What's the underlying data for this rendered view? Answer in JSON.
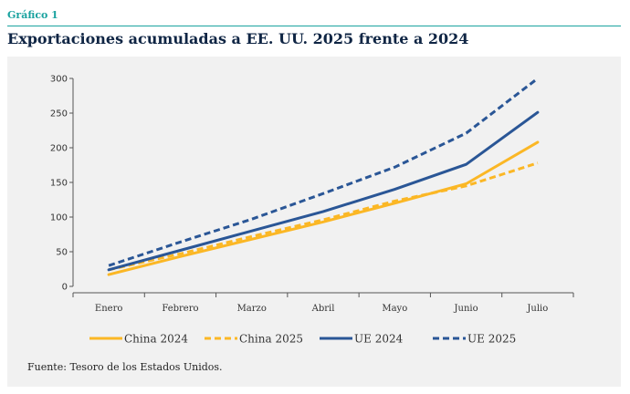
{
  "header": {
    "figure_label": "Gráfico 1",
    "title": "Exportaciones acumuladas a EE. UU. 2025 frente a 2024"
  },
  "source": "Fuente: Tesoro de los Estados Unidos.",
  "chart_data": {
    "type": "line",
    "categories": [
      "Enero",
      "Febrero",
      "Marzo",
      "Abril",
      "Mayo",
      "Junio",
      "Julio"
    ],
    "ylim": [
      0,
      300
    ],
    "yticks": [
      0,
      50,
      100,
      150,
      200,
      250,
      300
    ],
    "grid": false,
    "legend_position": "bottom",
    "series": [
      {
        "name": "China 2024",
        "color": "#fbb725",
        "dashed": false,
        "values": [
          17,
          43,
          68,
          93,
          120,
          148,
          208
        ]
      },
      {
        "name": "China 2025",
        "color": "#fbb725",
        "dashed": true,
        "values": [
          24,
          47,
          72,
          96,
          123,
          145,
          178
        ]
      },
      {
        "name": "UE 2024",
        "color": "#2a5696",
        "dashed": false,
        "values": [
          24,
          52,
          80,
          108,
          140,
          176,
          251
        ]
      },
      {
        "name": "UE 2025",
        "color": "#2a5696",
        "dashed": true,
        "values": [
          30,
          64,
          97,
          134,
          172,
          221,
          300
        ]
      }
    ]
  }
}
